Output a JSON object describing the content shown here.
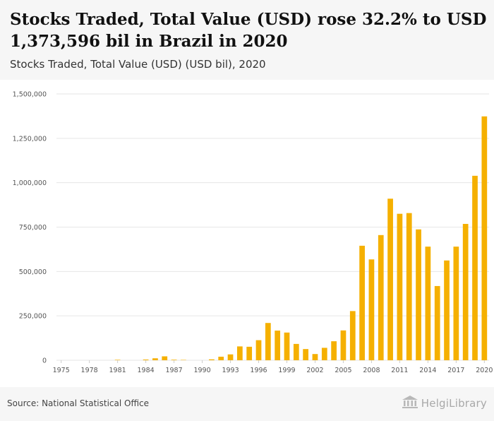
{
  "header": {
    "title": "Stocks Traded, Total Value (USD) rose 32.2% to USD 1,373,596 bil in Brazil in 2020",
    "subtitle": "Stocks Traded, Total Value (USD) (USD bil), 2020"
  },
  "footer": {
    "source": "Source: National Statistical Office",
    "brand": "HelgiLibrary"
  },
  "colors": {
    "bar": "#f5b000",
    "grid": "#e6e6e6",
    "header_bg": "#f6f6f6"
  },
  "chart_data": {
    "type": "bar",
    "categories": [
      "1975",
      "1976",
      "1977",
      "1978",
      "1979",
      "1980",
      "1981",
      "1982",
      "1983",
      "1984",
      "1985",
      "1986",
      "1987",
      "1988",
      "1989",
      "1990",
      "1991",
      "1992",
      "1993",
      "1994",
      "1995",
      "1996",
      "1997",
      "1998",
      "1999",
      "2000",
      "2001",
      "2002",
      "2003",
      "2004",
      "2005",
      "2006",
      "2007",
      "2008",
      "2009",
      "2010",
      "2011",
      "2012",
      "2013",
      "2014",
      "2015",
      "2016",
      "2017",
      "2018",
      "2019",
      "2020"
    ],
    "values": [
      0,
      0,
      0,
      0,
      0,
      0,
      2500,
      0,
      0,
      4000,
      11000,
      22000,
      3000,
      2000,
      0,
      0,
      5000,
      20000,
      33000,
      78000,
      76000,
      113000,
      210000,
      167000,
      156000,
      92000,
      63000,
      35000,
      70000,
      107000,
      168000,
      277000,
      645000,
      568000,
      705000,
      910000,
      825000,
      829000,
      737000,
      640000,
      418000,
      562000,
      640000,
      768000,
      1039000,
      1373596
    ],
    "x_tick_labels": [
      "1975",
      "1978",
      "1981",
      "1984",
      "1987",
      "1990",
      "1993",
      "1996",
      "1999",
      "2002",
      "2005",
      "2008",
      "2011",
      "2014",
      "2017",
      "2020"
    ],
    "y_ticks": [
      0,
      250000,
      500000,
      750000,
      1000000,
      1250000,
      1500000
    ],
    "y_tick_labels": [
      "0",
      "250,000",
      "500,000",
      "750,000",
      "1,000,000",
      "1,250,000",
      "1,500,000"
    ],
    "ylim": [
      0,
      1500000
    ],
    "grid": true,
    "legend": "none"
  }
}
